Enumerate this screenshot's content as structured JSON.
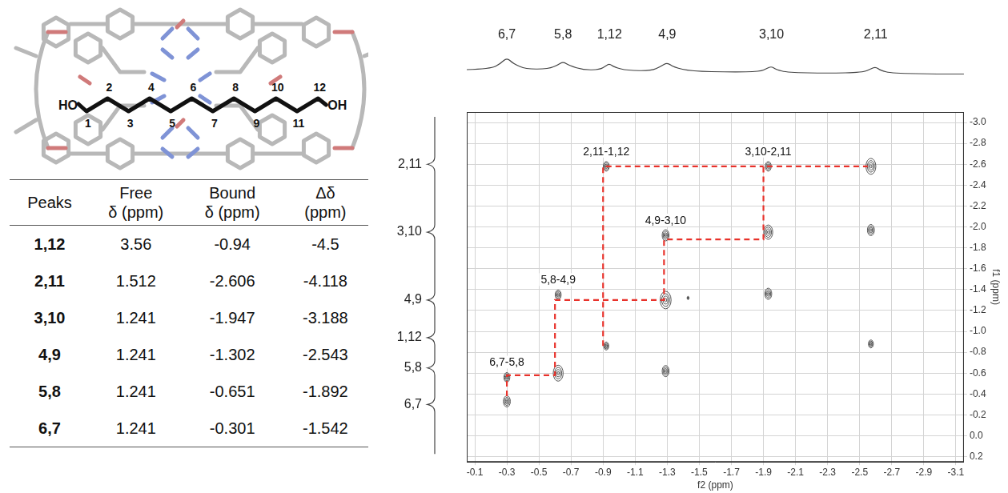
{
  "molecule": {
    "left_label": "HO",
    "right_label": "OH",
    "atoms": [
      "1",
      "2",
      "3",
      "4",
      "5",
      "6",
      "7",
      "8",
      "9",
      "10",
      "11",
      "12"
    ]
  },
  "table": {
    "header": [
      "Peaks",
      "Free δ (ppm)",
      "Bound δ (ppm)",
      "Δδ (ppm)"
    ],
    "rows": [
      [
        "1,12",
        3.56,
        -0.94,
        -4.5
      ],
      [
        "2,11",
        1.512,
        -2.606,
        -4.118
      ],
      [
        "3,10",
        1.241,
        -1.947,
        -3.188
      ],
      [
        "4,9",
        1.241,
        -1.302,
        -2.543
      ],
      [
        "5,8",
        1.241,
        -0.651,
        -1.892
      ],
      [
        "6,7",
        1.241,
        -0.301,
        -1.542
      ]
    ]
  },
  "chart_data": {
    "type": "scatter",
    "marker": "contour",
    "x_label": "f2 (ppm)",
    "y_label": "f1 (ppm)",
    "xlim": [
      -0.05,
      -3.15
    ],
    "ylim": [
      0.25,
      -3.1
    ],
    "xticks": [
      -0.1,
      -0.3,
      -0.5,
      -0.7,
      -0.9,
      -1.1,
      -1.3,
      -1.5,
      -1.7,
      -1.9,
      -2.1,
      -2.3,
      -2.5,
      -2.7,
      -2.9,
      -3.1
    ],
    "yticks": [
      {
        "value": -3,
        "label": "-3.0"
      },
      -2.8,
      -2.6,
      -2.4,
      -2.2,
      {
        "value": -2,
        "label": "-2.0"
      },
      -1.8,
      -1.6,
      -1.4,
      -1.2,
      {
        "value": -1,
        "label": "-1.0"
      },
      -0.8,
      -0.6,
      -0.4,
      -0.2,
      {
        "value": 0,
        "label": "0.0"
      },
      0.2
    ],
    "grid": true,
    "color": "#555555",
    "peaks": {
      "x": [
        -0.3,
        -0.3,
        -0.62,
        -0.62,
        -0.92,
        -0.92,
        -1.29,
        -1.29,
        -1.29,
        -1.43,
        -1.93,
        -1.93,
        -1.93,
        -2.57,
        -2.57,
        -2.57
      ],
      "y": [
        -0.33,
        -0.56,
        -1.35,
        -0.6,
        -2.58,
        -0.86,
        -1.92,
        -1.3,
        -0.62,
        -1.32,
        -2.58,
        -1.95,
        -1.36,
        -2.58,
        -1.97,
        -0.88
      ],
      "size": [
        7,
        6,
        6,
        10,
        6,
        5,
        7,
        11,
        7,
        2,
        6,
        9,
        7,
        10,
        7,
        5
      ]
    },
    "connections": [
      {
        "color": "#e8322b",
        "line_style": "dashed",
        "x": [
          -0.3,
          -0.3,
          -0.6,
          -0.6,
          -1.28,
          -1.28,
          -1.9,
          -1.9,
          -2.55
        ],
        "y": [
          -0.38,
          -0.58,
          -0.58,
          -1.3,
          -1.3,
          -1.88,
          -1.88,
          -2.58,
          -2.58
        ]
      },
      {
        "color": "#e8322b",
        "line_style": "dashed",
        "x": [
          -0.9,
          -0.9,
          -1.9
        ],
        "y": [
          -0.86,
          -2.58,
          -2.58
        ]
      }
    ],
    "annotations": [
      {
        "text": "2,11-1,12",
        "x": -0.92,
        "y": -2.58
      },
      {
        "text": "3,10-2,11",
        "x": -1.93,
        "y": -2.58
      },
      {
        "text": "4,9-3,10",
        "x": -1.29,
        "y": -1.92
      },
      {
        "text": "5,8-4,9",
        "x": -0.62,
        "y": -1.35
      },
      {
        "text": "6,7-5,8",
        "x": -0.3,
        "y": -0.56
      }
    ],
    "f2_projection": {
      "color": "#444444",
      "tick_labels": false,
      "ylim": [
        0,
        8
      ],
      "x": [
        -0.05,
        -0.2,
        -0.26,
        -0.3,
        -0.34,
        -0.42,
        -0.56,
        -0.62,
        -0.65,
        -0.69,
        -0.78,
        -0.88,
        -0.92,
        -0.94,
        -0.97,
        -1.05,
        -1.2,
        -1.26,
        -1.3,
        -1.34,
        -1.45,
        -1.7,
        -1.88,
        -1.92,
        -1.95,
        -1.98,
        -2.05,
        -2.3,
        -2.52,
        -2.57,
        -2.6,
        -2.63,
        -2.7,
        -3.0,
        -3.15
      ],
      "values": [
        3,
        3.2,
        4.5,
        6,
        4.5,
        3.1,
        3.2,
        4.2,
        5,
        4,
        2.9,
        3,
        4,
        4.5,
        3.6,
        2.8,
        2.7,
        3.8,
        4.8,
        3.6,
        2.6,
        2.4,
        2.5,
        3.3,
        3.8,
        3.0,
        2.3,
        2.1,
        2.3,
        3.2,
        3.7,
        2.8,
        2.1,
        1.9,
        1.9
      ],
      "peaks": [
        {
          "label": "6,7",
          "x": -0.3
        },
        {
          "label": "5,8",
          "x": -0.65
        },
        {
          "label": "1,12",
          "x": -0.94
        },
        {
          "label": "4,9",
          "x": -1.3
        },
        {
          "label": "3,10",
          "x": -1.95
        },
        {
          "label": "2,11",
          "x": -2.6
        }
      ]
    },
    "f1_projection": {
      "color": "#444444",
      "peaks": [
        {
          "label": "2,11",
          "y": -2.6
        },
        {
          "label": "3,10",
          "y": -1.95
        },
        {
          "label": "4,9",
          "y": -1.3
        },
        {
          "label": "1,12",
          "y": -0.94
        },
        {
          "label": "5,8",
          "y": -0.65
        },
        {
          "label": "6,7",
          "y": -0.3
        }
      ]
    }
  }
}
